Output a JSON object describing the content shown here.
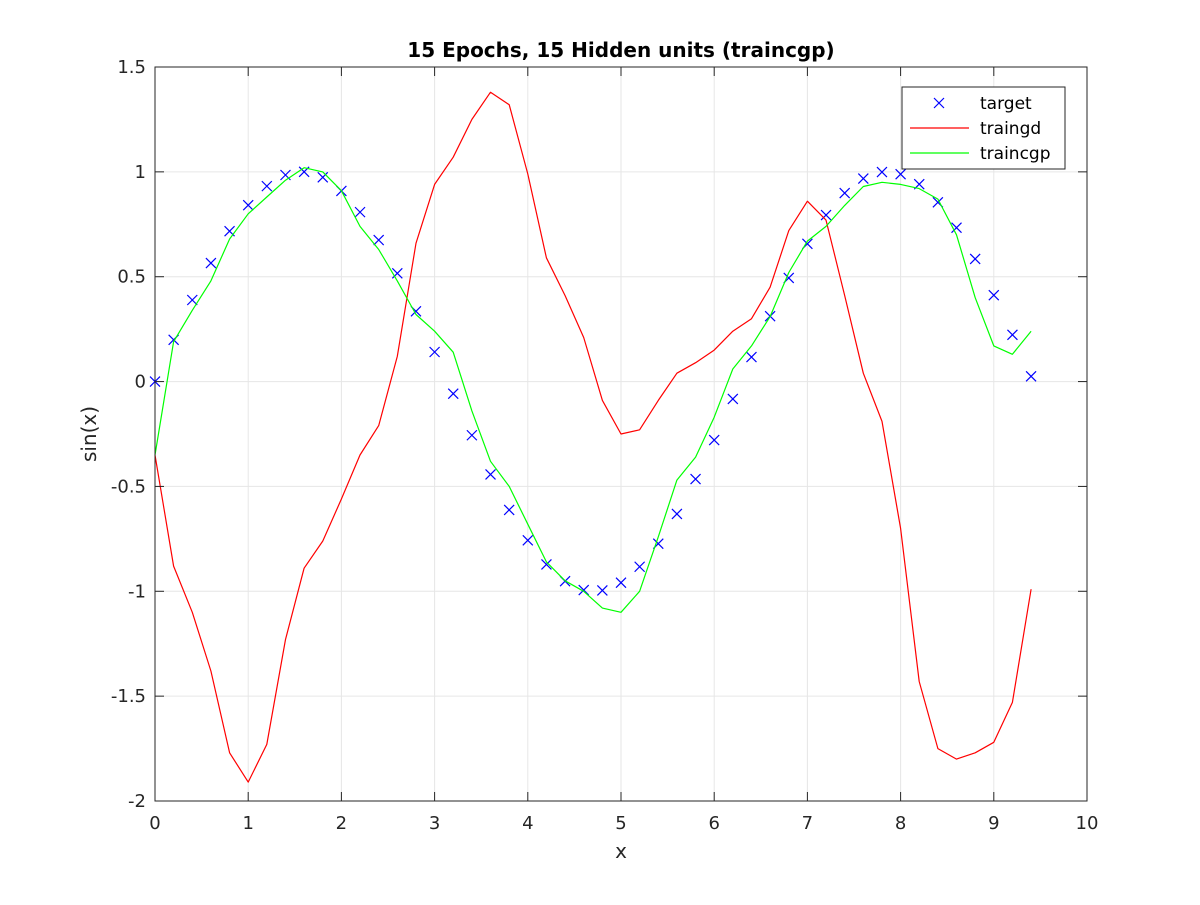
{
  "chart_data": {
    "type": "line",
    "title": "15 Epochs, 15 Hidden units (traincgp)",
    "xlabel": "x",
    "ylabel": "sin(x)",
    "xlim": [
      0,
      10
    ],
    "ylim": [
      -2,
      1.5
    ],
    "xticks": [
      0,
      1,
      2,
      3,
      4,
      5,
      6,
      7,
      8,
      9,
      10
    ],
    "xtick_labels": [
      "0",
      "1",
      "2",
      "3",
      "4",
      "5",
      "6",
      "7",
      "8",
      "9",
      "10"
    ],
    "yticks": [
      -2,
      -1.5,
      -1,
      -0.5,
      0,
      0.5,
      1,
      1.5
    ],
    "ytick_labels": [
      "-2",
      "-1.5",
      "-1",
      "-0.5",
      "0",
      "0.5",
      "1",
      "1.5"
    ],
    "grid": true,
    "legend_position": "top-right",
    "x": [
      0,
      0.2,
      0.4,
      0.6,
      0.8,
      1.0,
      1.2,
      1.4,
      1.6,
      1.8,
      2.0,
      2.2,
      2.4,
      2.6,
      2.8,
      3.0,
      3.2,
      3.4,
      3.6,
      3.8,
      4.0,
      4.2,
      4.4,
      4.6,
      4.8,
      5.0,
      5.2,
      5.4,
      5.6,
      5.8,
      6.0,
      6.2,
      6.4,
      6.6,
      6.8,
      7.0,
      7.2,
      7.4,
      7.6,
      7.8,
      8.0,
      8.2,
      8.4,
      8.6,
      8.8,
      9.0,
      9.2,
      9.4
    ],
    "series": [
      {
        "name": "target",
        "style": "marker",
        "marker": "x",
        "color": "#0000ff",
        "values": [
          0,
          0.199,
          0.389,
          0.565,
          0.717,
          0.841,
          0.932,
          0.985,
          1.0,
          0.974,
          0.909,
          0.808,
          0.675,
          0.516,
          0.335,
          0.141,
          -0.058,
          -0.256,
          -0.443,
          -0.612,
          -0.757,
          -0.872,
          -0.952,
          -0.994,
          -0.996,
          -0.959,
          -0.883,
          -0.773,
          -0.631,
          -0.465,
          -0.279,
          -0.083,
          0.117,
          0.312,
          0.494,
          0.657,
          0.794,
          0.899,
          0.968,
          0.999,
          0.989,
          0.941,
          0.855,
          0.734,
          0.585,
          0.412,
          0.223,
          0.025
        ]
      },
      {
        "name": "traingd",
        "style": "line",
        "color": "#ff0000",
        "values": [
          -0.35,
          -0.88,
          -1.1,
          -1.38,
          -1.77,
          -1.91,
          -1.73,
          -1.23,
          -0.89,
          -0.76,
          -0.56,
          -0.35,
          -0.21,
          0.12,
          0.66,
          0.94,
          1.07,
          1.25,
          1.38,
          1.32,
          0.99,
          0.59,
          0.41,
          0.21,
          -0.09,
          -0.25,
          -0.23,
          -0.09,
          0.04,
          0.09,
          0.15,
          0.24,
          0.3,
          0.45,
          0.72,
          0.86,
          0.77,
          0.41,
          0.04,
          -0.19,
          -0.7,
          -1.43,
          -1.75,
          -1.8,
          -1.77,
          -1.72,
          -1.53,
          -0.99
        ]
      },
      {
        "name": "traincgp",
        "style": "line",
        "color": "#00ff00",
        "values": [
          -0.35,
          0.19,
          0.34,
          0.48,
          0.68,
          0.8,
          0.88,
          0.96,
          1.02,
          1.0,
          0.91,
          0.74,
          0.63,
          0.48,
          0.32,
          0.24,
          0.14,
          -0.14,
          -0.38,
          -0.5,
          -0.68,
          -0.86,
          -0.95,
          -1.0,
          -1.08,
          -1.1,
          -1.0,
          -0.74,
          -0.47,
          -0.36,
          -0.17,
          0.06,
          0.17,
          0.31,
          0.52,
          0.67,
          0.74,
          0.84,
          0.93,
          0.95,
          0.94,
          0.92,
          0.87,
          0.7,
          0.4,
          0.17,
          0.13,
          0.24
        ]
      }
    ]
  }
}
